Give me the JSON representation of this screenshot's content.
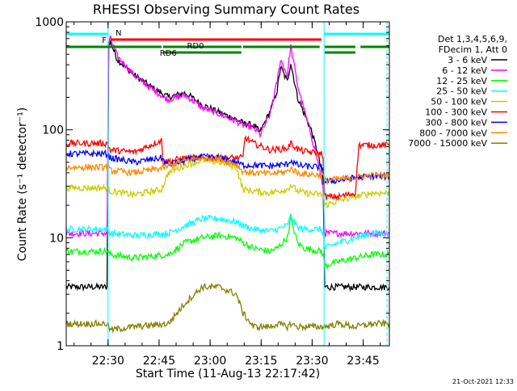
{
  "chart_data": {
    "type": "line",
    "title": "RHESSI Observing Summary Count Rates",
    "xlabel": "Start Time (11-Aug-13 22:17:42)",
    "ylabel": "Count Rate (s⁻¹ detector⁻¹)",
    "y_scale": "log",
    "ylim": [
      1,
      1000
    ],
    "xlim_minutes_from_start": [
      0,
      95
    ],
    "x_ticks": [
      {
        "label": "22:30",
        "min": 12.3
      },
      {
        "label": "22:45",
        "min": 27.3
      },
      {
        "label": "23:00",
        "min": 42.3
      },
      {
        "label": "23:15",
        "min": 57.3
      },
      {
        "label": "23:30",
        "min": 72.3
      },
      {
        "label": "23:45",
        "min": 87.3
      }
    ],
    "y_ticks": [
      {
        "label": "1",
        "value": 1
      },
      {
        "label": "10",
        "value": 10
      },
      {
        "label": "100",
        "value": 100
      },
      {
        "label": "1000",
        "value": 1000
      }
    ],
    "legend_header": [
      "Det 1,3,4,5,6,9,",
      "FDecim 1, Att 0"
    ],
    "legend_position": "right",
    "series": [
      {
        "name": "3 - 6 keV",
        "color": "#000000",
        "x": [
          0,
          12,
          12.5,
          13,
          15,
          20,
          25,
          30,
          35,
          40,
          45,
          50,
          52,
          55,
          57,
          60,
          62,
          63,
          65,
          66,
          68,
          70,
          72,
          74,
          75.5,
          76,
          80,
          85,
          90,
          95
        ],
        "values": [
          3.5,
          3.5,
          600,
          650,
          450,
          320,
          250,
          200,
          220,
          170,
          145,
          125,
          115,
          110,
          95,
          150,
          230,
          380,
          280,
          420,
          200,
          140,
          100,
          60,
          35,
          3.5,
          3.5,
          3.5,
          3.5,
          3.5
        ]
      },
      {
        "name": "6 - 12 keV",
        "color": "#ff00ff",
        "x": [
          0,
          12,
          12.5,
          13,
          15,
          20,
          25,
          30,
          35,
          40,
          45,
          50,
          52,
          55,
          57,
          60,
          62,
          63,
          65,
          66,
          68,
          70,
          72,
          74,
          75.5,
          76,
          80,
          85,
          90,
          95
        ],
        "values": [
          11,
          11,
          620,
          700,
          480,
          320,
          240,
          190,
          210,
          160,
          140,
          120,
          110,
          105,
          90,
          140,
          280,
          450,
          320,
          600,
          260,
          150,
          90,
          50,
          30,
          11,
          11,
          11,
          11,
          11
        ]
      },
      {
        "name": "12 - 25 keV",
        "color": "#00ff00",
        "x": [
          0,
          12,
          13,
          20,
          30,
          35,
          40,
          45,
          50,
          52,
          55,
          60,
          62,
          65,
          66,
          68,
          70,
          75,
          75.5,
          76,
          80,
          85,
          90,
          95
        ],
        "values": [
          7.5,
          7.5,
          7,
          6.5,
          7,
          9,
          10,
          10.5,
          10,
          9,
          8,
          7.5,
          8,
          10,
          15,
          9,
          8,
          7.5,
          7,
          5.5,
          6,
          6.5,
          7,
          7
        ]
      },
      {
        "name": "25 - 50 keV",
        "color": "#00ffff",
        "x": [
          0,
          12,
          13,
          20,
          30,
          35,
          40,
          45,
          50,
          52,
          55,
          60,
          62,
          65,
          66,
          68,
          70,
          75,
          75.5,
          76,
          80,
          85,
          90,
          95
        ],
        "values": [
          12,
          12,
          11,
          10.5,
          11,
          13,
          15,
          15,
          14,
          13,
          12,
          11.5,
          12,
          13,
          16,
          12.5,
          12,
          12,
          11,
          8,
          9,
          10,
          11,
          11
        ]
      },
      {
        "name": "50 - 100 keV",
        "color": "#cccc00",
        "x": [
          0,
          12,
          13,
          20,
          28,
          30,
          35,
          40,
          45,
          50,
          52,
          55,
          60,
          62,
          65,
          66,
          68,
          70,
          75,
          75.5,
          76,
          80,
          85,
          90,
          95
        ],
        "values": [
          29,
          29,
          27,
          25,
          28,
          40,
          47,
          52,
          50,
          45,
          28,
          27,
          26,
          27,
          28,
          31,
          27,
          26,
          25,
          25,
          20,
          22,
          24,
          26,
          26
        ]
      },
      {
        "name": "100 - 300 keV",
        "color": "#ff0000",
        "x": [
          0,
          12,
          13,
          20,
          28,
          28.5,
          35,
          40,
          45,
          50,
          52,
          52.5,
          55,
          60,
          62,
          65,
          66,
          68,
          70,
          75,
          75.5,
          76,
          80,
          85,
          86,
          90,
          95
        ],
        "values": [
          75,
          75,
          65,
          62,
          80,
          50,
          55,
          55,
          55,
          55,
          55,
          85,
          75,
          65,
          66,
          67,
          75,
          66,
          63,
          60,
          58,
          24,
          24,
          26,
          72,
          72,
          72
        ]
      },
      {
        "name": "300 - 800 keV",
        "color": "#0000ff",
        "x": [
          0,
          12,
          13,
          20,
          28,
          30,
          35,
          40,
          45,
          50,
          52,
          55,
          60,
          62,
          65,
          66,
          68,
          70,
          75,
          75.5,
          76,
          80,
          85,
          90,
          95
        ],
        "values": [
          60,
          60,
          55,
          50,
          55,
          47,
          52,
          56,
          55,
          50,
          47,
          47,
          46,
          47,
          48,
          52,
          47,
          46,
          45,
          44,
          33,
          34,
          36,
          37,
          37
        ]
      },
      {
        "name": "800 - 7000 keV",
        "color": "#ff8800",
        "x": [
          0,
          12,
          13,
          20,
          28,
          30,
          35,
          40,
          45,
          50,
          52,
          55,
          60,
          62,
          65,
          66,
          68,
          70,
          75,
          75.5,
          76,
          80,
          85,
          90,
          95
        ],
        "values": [
          45,
          45,
          42,
          40,
          44,
          46,
          52,
          55,
          54,
          48,
          41,
          40,
          39,
          40,
          41,
          44,
          40,
          39,
          38,
          38,
          34,
          35,
          36,
          38,
          38
        ]
      },
      {
        "name": "7000 - 15000 keV",
        "color": "#808000",
        "x": [
          0,
          12,
          13,
          20,
          30,
          35,
          40,
          45,
          50,
          52,
          55,
          60,
          62,
          65,
          66,
          68,
          70,
          75,
          75.5,
          76,
          80,
          85,
          90,
          95
        ],
        "values": [
          1.6,
          1.6,
          1.4,
          1.5,
          1.6,
          2.5,
          3.5,
          3.5,
          3,
          2,
          1.5,
          1.5,
          1.6,
          1.5,
          1.6,
          1.5,
          1.5,
          1.5,
          1.5,
          1.5,
          1.6,
          1.5,
          1.6,
          1.6
        ]
      }
    ],
    "annotations": {
      "flag_labels": [
        "F",
        "N",
        "RD0",
        "RD6"
      ],
      "date_stamp": "21-Oct-2021 12:33"
    }
  },
  "colors": {
    "flag_F": "#ff0000",
    "flag_N": "#00ffff",
    "flag_RD": "#008800",
    "vline": "#00ffff"
  }
}
